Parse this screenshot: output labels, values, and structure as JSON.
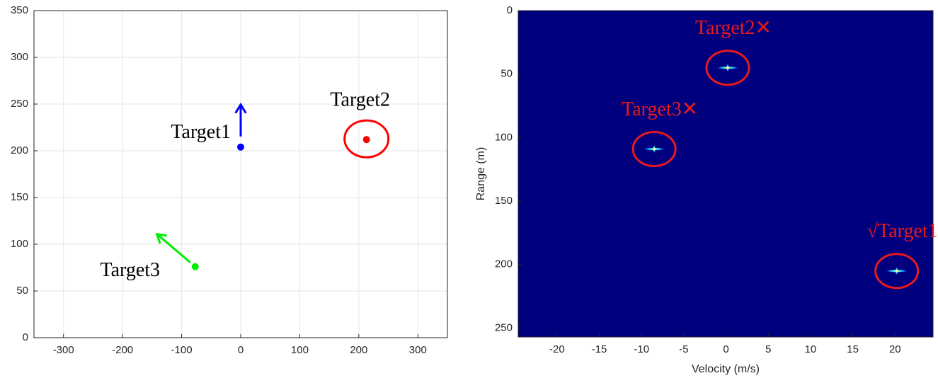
{
  "chart_data": [
    {
      "type": "scatter",
      "xlim": [
        -350,
        350
      ],
      "ylim": [
        0,
        350
      ],
      "xticks": [
        -300,
        -200,
        -100,
        0,
        100,
        200,
        300
      ],
      "yticks": [
        0,
        50,
        100,
        150,
        200,
        250,
        300,
        350
      ],
      "grid": true,
      "points": [
        {
          "label": "Target1",
          "x": 0,
          "y": 204,
          "color": "#0000ff",
          "label_position": "left",
          "heading": "up",
          "circled": false
        },
        {
          "label": "Target2",
          "x": 213,
          "y": 212,
          "color": "#ff0000",
          "label_position": "above",
          "heading": "none",
          "circled": true
        },
        {
          "label": "Target3",
          "x": -77,
          "y": 76,
          "color": "#00ee00",
          "label_position": "below-left",
          "heading": "up-left",
          "circled": false
        }
      ]
    },
    {
      "type": "heatmap",
      "x_label": "Velocity (m/s)",
      "y_label": "Range (m)",
      "xlim": [
        -24.6,
        24.5
      ],
      "ylim": [
        0,
        257
      ],
      "y_reversed": true,
      "xticks": [
        -20,
        -15,
        -10,
        -5,
        0,
        5,
        10,
        15,
        20
      ],
      "yticks": [
        0,
        50,
        100,
        150,
        200,
        250
      ],
      "grid": false,
      "background": "#00007f",
      "annotation_color": "#e8191c",
      "peaks": [
        {
          "label": "Target2✕",
          "x": 0.2,
          "y": 45
        },
        {
          "label": "Target3✕",
          "x": -8.5,
          "y": 109
        },
        {
          "label": "√Target1",
          "x": 20.2,
          "y": 205
        }
      ]
    }
  ]
}
